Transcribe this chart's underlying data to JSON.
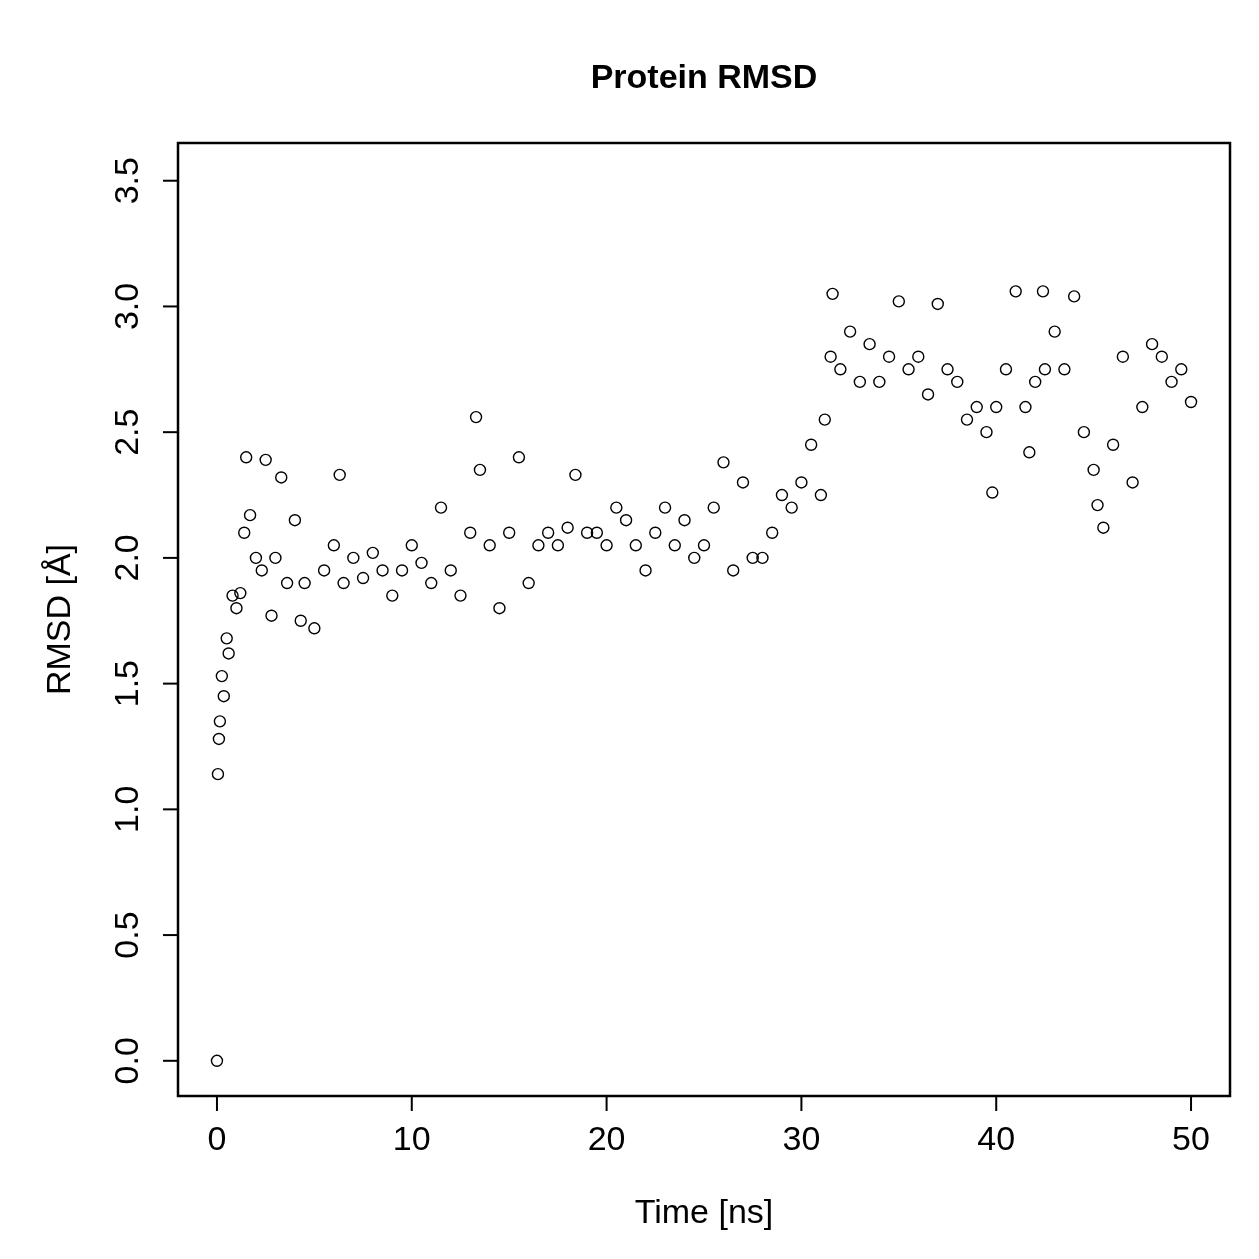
{
  "chart_data": {
    "type": "scatter",
    "title": "Protein RMSD",
    "xlabel": "Time [ns]",
    "ylabel": "RMSD [Å]",
    "xlim": [
      -2,
      52
    ],
    "ylim": [
      -0.14,
      3.65
    ],
    "xticks": [
      0,
      10,
      20,
      30,
      40,
      50
    ],
    "yticks": [
      {
        "value": 0,
        "label": "0.0"
      },
      {
        "value": 0.5,
        "label": "0.5"
      },
      {
        "value": 1,
        "label": "1.0"
      },
      {
        "value": 1.5,
        "label": "1.5"
      },
      {
        "value": 2,
        "label": "2.0"
      },
      {
        "value": 2.5,
        "label": "2.5"
      },
      {
        "value": 3,
        "label": "3.0"
      },
      {
        "value": 3.5,
        "label": "3.5"
      }
    ],
    "grid": false,
    "marker": "circle",
    "series": [
      {
        "color": "#000000",
        "x": [
          0,
          0.05,
          0.1,
          0.15,
          0.25,
          0.35,
          0.5,
          0.6,
          0.8,
          1.0,
          1.2,
          1.4,
          1.5,
          1.7,
          2.0,
          2.3,
          2.5,
          2.8,
          3.0,
          3.3,
          3.6,
          4.0,
          4.3,
          4.5,
          5.0,
          5.5,
          6.0,
          6.3,
          6.5,
          7.0,
          7.5,
          8.0,
          8.5,
          9.0,
          9.5,
          10,
          10.5,
          11,
          11.5,
          12,
          12.5,
          13,
          13.3,
          13.5,
          14,
          14.5,
          15,
          15.5,
          16,
          16.5,
          17,
          17.5,
          18,
          18.4,
          19,
          19.5,
          20,
          20.5,
          21,
          21.5,
          22,
          22.5,
          23,
          23.5,
          24,
          24.5,
          25,
          25.5,
          26,
          26.5,
          27,
          27.5,
          28,
          28.5,
          29,
          29.5,
          30,
          30.5,
          31,
          31.2,
          31.5,
          31.6,
          32,
          32.5,
          33,
          33.5,
          34,
          34.5,
          35,
          35.5,
          36,
          36.5,
          37,
          37.5,
          38,
          38.5,
          39,
          39.5,
          39.8,
          40,
          40.5,
          41,
          41.5,
          41.7,
          42,
          42.4,
          42.5,
          43,
          43.5,
          44,
          44.5,
          45,
          45.2,
          45.5,
          46,
          46.5,
          47,
          47.5,
          48,
          48.5,
          49,
          49.5,
          50
        ],
        "values": [
          0.0,
          1.14,
          1.28,
          1.35,
          1.53,
          1.45,
          1.68,
          1.62,
          1.85,
          1.8,
          1.86,
          2.1,
          2.4,
          2.17,
          2.0,
          1.95,
          2.39,
          1.77,
          2.0,
          2.32,
          1.9,
          2.15,
          1.75,
          1.9,
          1.72,
          1.95,
          2.05,
          2.33,
          1.9,
          2.0,
          1.92,
          2.02,
          1.95,
          1.85,
          1.95,
          2.05,
          1.98,
          1.9,
          2.2,
          1.95,
          1.85,
          2.1,
          2.56,
          2.35,
          2.05,
          1.8,
          2.1,
          2.4,
          1.9,
          2.05,
          2.1,
          2.05,
          2.12,
          2.33,
          2.1,
          2.1,
          2.05,
          2.2,
          2.15,
          2.05,
          1.95,
          2.1,
          2.2,
          2.05,
          2.15,
          2.0,
          2.05,
          2.2,
          2.38,
          1.95,
          2.3,
          2.0,
          2.0,
          2.1,
          2.25,
          2.2,
          2.3,
          2.45,
          2.25,
          2.55,
          2.8,
          3.05,
          2.75,
          2.9,
          2.7,
          2.85,
          2.7,
          2.8,
          3.02,
          2.75,
          2.8,
          2.65,
          3.01,
          2.75,
          2.7,
          2.55,
          2.6,
          2.5,
          2.26,
          2.6,
          2.75,
          3.06,
          2.6,
          2.42,
          2.7,
          3.06,
          2.75,
          2.9,
          2.75,
          3.04,
          2.5,
          2.35,
          2.21,
          2.12,
          2.45,
          2.8,
          2.3,
          2.6,
          2.85,
          2.8,
          2.7,
          2.75,
          2.62
        ]
      }
    ]
  }
}
